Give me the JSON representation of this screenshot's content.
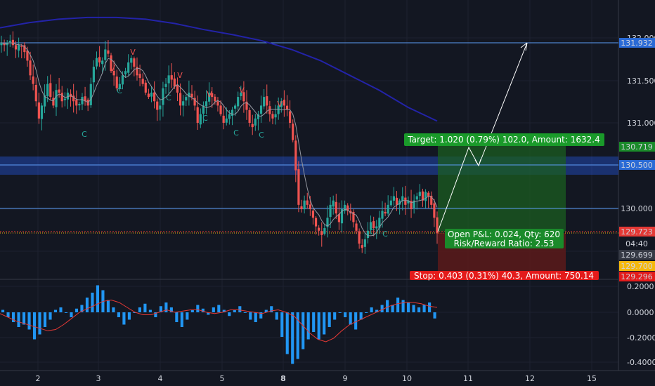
{
  "colors": {
    "background": "#131722",
    "grid": "#1e2230",
    "up": "#26a69a",
    "down": "#ef5350",
    "ma_slow": "#2323a8",
    "ma_fast": "#9598a1",
    "hline": "#5b9cf6",
    "zone": "#2962ff",
    "target_zone": "#1b5e20",
    "stop_zone": "#5c1a1a",
    "macd_hist": "#2196f3",
    "macd_signal": "#e53935",
    "target_label_bg": "#1a9a2a",
    "stop_label_bg": "#e31b1b",
    "current_tag": "#e53935",
    "yellow_tag": "#f5b80c"
  },
  "x_axis": {
    "labels": [
      {
        "text": "2",
        "bold": false
      },
      {
        "text": "3",
        "bold": false
      },
      {
        "text": "4",
        "bold": false
      },
      {
        "text": "5",
        "bold": false
      },
      {
        "text": "8",
        "bold": true
      },
      {
        "text": "9",
        "bold": false
      },
      {
        "text": "10",
        "bold": false
      },
      {
        "text": "11",
        "bold": false
      },
      {
        "text": "12",
        "bold": false
      },
      {
        "text": "15",
        "bold": false
      }
    ]
  },
  "price_axis": {
    "ticks": [
      "132.000",
      "131.500",
      "131.000",
      "130.000"
    ],
    "tags": {
      "resistance": "131.932",
      "target": "130.719",
      "zone": "130.500",
      "support": "130.000",
      "current": "129.723",
      "countdown": "04:40",
      "level_a": "129.699",
      "level_b": "129.700",
      "stop": "129.296"
    }
  },
  "macd_axis": {
    "ticks": [
      "0.2000",
      "0.0000",
      "-0.2000",
      "-0.4000"
    ]
  },
  "position": {
    "target_label": "Target: 1.020 (0.79%) 102.0, Amount: 1632.4",
    "pnl_line1": "Open P&L: 0.024, Qty: 620",
    "pnl_line2": "Risk/Reward Ratio: 2.53",
    "stop_label": "Stop: 0.403 (0.31%) 40.3, Amount: 750.14"
  },
  "signals": {
    "c_label": "C",
    "v_label": "V"
  },
  "chart_data": [
    {
      "type": "candlestick",
      "title": "",
      "x_labels": [
        "2",
        "3",
        "4",
        "5",
        "8",
        "9",
        "10",
        "11",
        "12",
        "15"
      ],
      "y_range": [
        129.296,
        132.0
      ],
      "levels": {
        "resistance": 131.932,
        "target": 130.719,
        "zone_top": 130.6,
        "zone_mid": 130.5,
        "zone_bottom": 130.4,
        "support": 130.0,
        "entry": 129.723,
        "stop": 129.296
      },
      "close_path": [
        131.93,
        131.9,
        131.93,
        131.95,
        131.9,
        131.85,
        131.9,
        131.88,
        131.82,
        131.72,
        131.55,
        131.45,
        131.25,
        131.05,
        131.2,
        131.32,
        131.45,
        131.3,
        131.2,
        131.38,
        131.35,
        131.25,
        131.28,
        131.35,
        131.3,
        131.25,
        131.2,
        131.22,
        131.3,
        131.25,
        131.2,
        131.45,
        131.65,
        131.75,
        131.7,
        131.72,
        131.85,
        131.8,
        131.6,
        131.55,
        131.4,
        131.45,
        131.55,
        131.6,
        131.7,
        131.75,
        131.65,
        131.55,
        131.52,
        131.45,
        131.35,
        131.3,
        131.35,
        131.25,
        131.15,
        131.2,
        131.4,
        131.45,
        131.55,
        131.5,
        131.42,
        131.35,
        131.2,
        131.25,
        131.3,
        131.35,
        131.3,
        131.2,
        131.0,
        131.1,
        131.2,
        131.25,
        131.35,
        131.3,
        131.25,
        131.2,
        131.1,
        131.0,
        131.05,
        131.1,
        131.15,
        131.2,
        131.3,
        131.35,
        131.25,
        131.15,
        131.0,
        130.95,
        131.05,
        131.1,
        131.2,
        131.3,
        131.2,
        131.1,
        131.05,
        131.1,
        131.2,
        131.25,
        131.2,
        131.15,
        131.0,
        130.8,
        130.45,
        130.05,
        130.0,
        130.1,
        130.05,
        130.0,
        129.9,
        129.8,
        129.75,
        129.7,
        129.78,
        129.9,
        130.05,
        130.1,
        129.95,
        129.85,
        130.0,
        130.05,
        129.98,
        129.95,
        129.85,
        129.75,
        129.6,
        129.55,
        129.65,
        129.75,
        129.85,
        129.78,
        129.8,
        129.9,
        129.98,
        129.95,
        130.05,
        130.1,
        130.15,
        130.05,
        130.1,
        130.15,
        130.05,
        130.1,
        130.0,
        130.1,
        130.15,
        130.2,
        130.1,
        130.2,
        130.15,
        130.05,
        129.9,
        129.72
      ],
      "ma_slow": [
        132.1,
        132.16,
        132.2,
        132.22,
        132.22,
        132.2,
        132.15,
        132.08,
        132.02,
        131.95,
        131.85,
        131.72,
        131.55,
        131.38,
        131.18,
        131.02
      ],
      "macd": {
        "y_range": [
          -0.4,
          0.2
        ],
        "hist": [
          0.02,
          -0.04,
          -0.08,
          -0.12,
          -0.1,
          -0.14,
          -0.22,
          -0.18,
          -0.12,
          -0.06,
          0.02,
          0.04,
          0.0,
          -0.04,
          0.03,
          0.06,
          0.12,
          0.16,
          0.22,
          0.18,
          0.1,
          0.04,
          -0.04,
          -0.1,
          -0.06,
          0.0,
          0.04,
          0.07,
          0.02,
          -0.04,
          0.05,
          0.08,
          0.04,
          -0.08,
          -0.12,
          -0.06,
          0.02,
          0.06,
          0.03,
          -0.02,
          0.04,
          0.06,
          0.02,
          -0.03,
          0.02,
          0.05,
          0.0,
          -0.06,
          -0.08,
          -0.05,
          0.02,
          0.05,
          -0.06,
          -0.2,
          -0.34,
          -0.42,
          -0.38,
          -0.3,
          -0.22,
          -0.16,
          -0.22,
          -0.18,
          -0.12,
          -0.06,
          0.0,
          -0.04,
          -0.1,
          -0.14,
          -0.06,
          0.0,
          0.04,
          0.02,
          0.06,
          0.1,
          0.06,
          0.12,
          0.1,
          0.08,
          0.06,
          0.04,
          0.06,
          0.08,
          -0.05
        ],
        "signal": [
          -0.01,
          -0.04,
          -0.07,
          -0.09,
          -0.11,
          -0.13,
          -0.15,
          -0.14,
          -0.1,
          -0.05,
          0.0,
          0.03,
          0.06,
          0.09,
          0.1,
          0.08,
          0.04,
          0.0,
          -0.02,
          -0.02,
          0.0,
          0.02,
          0.0,
          0.01,
          0.02,
          0.02,
          0.0,
          -0.01,
          0.0,
          0.02,
          0.02,
          0.01,
          0.0,
          -0.01,
          0.01,
          0.02,
          0.0,
          -0.03,
          -0.1,
          -0.17,
          -0.22,
          -0.24,
          -0.21,
          -0.15,
          -0.1,
          -0.07,
          -0.04,
          -0.01,
          0.02,
          0.05,
          0.07,
          0.08,
          0.08,
          0.07,
          0.05,
          0.04
        ]
      }
    }
  ]
}
